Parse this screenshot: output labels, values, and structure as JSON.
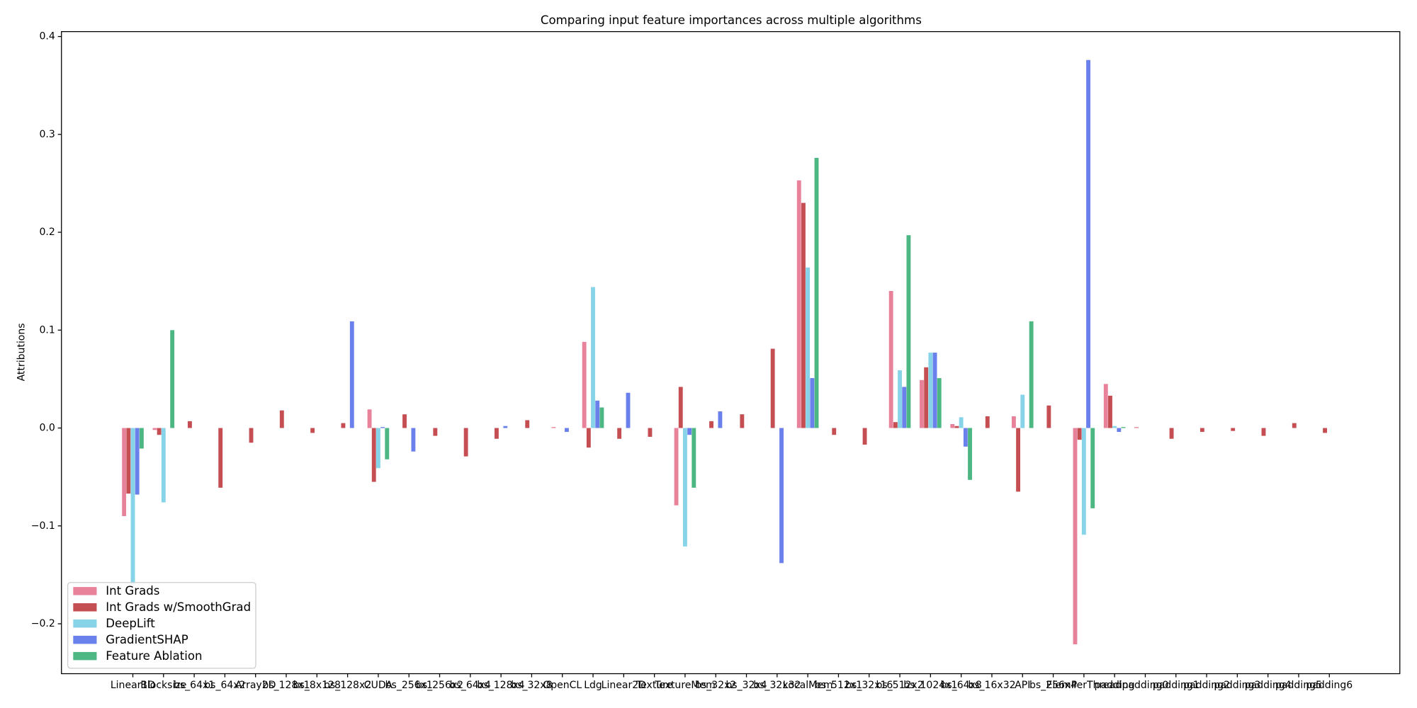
{
  "chart_data": {
    "type": "bar",
    "title": "Comparing input feature importances across multiple algorithms",
    "ylabel": "Attributions",
    "categories": [
      "Linear1D",
      "Blocksize",
      "bs_64x1",
      "bs_64x2",
      "Array2D",
      "bs_128x1",
      "bs_8x128",
      "bs_128x2",
      "CUDA",
      "bs_256x1",
      "bs_256x2",
      "bs_64x4",
      "bs_128x4",
      "bs_32x8",
      "OpenCL",
      "Ldg",
      "Linear2D",
      "Texture",
      "TextureMem",
      "bs_32x2",
      "bs_32x4",
      "bs_32x32",
      "LocalMem",
      "bs_512x1",
      "bs_32x16",
      "bs_512x2",
      "bs_1024x1",
      "bs_64x8",
      "bs_16x32",
      "API",
      "bs_256x4",
      "ElemPerThread",
      "padding",
      "padding0",
      "padding1",
      "padding2",
      "padding3",
      "padding4",
      "padding5",
      "padding6"
    ],
    "series": [
      {
        "name": "Int Grads",
        "color": "#e8829a",
        "values": [
          -0.09,
          -0.002,
          0,
          0,
          0,
          0,
          0,
          0,
          0.019,
          0,
          0,
          0,
          0,
          0,
          0.001,
          0.088,
          0,
          0,
          -0.079,
          0,
          0,
          0,
          0.253,
          0,
          0,
          0.14,
          0.049,
          0.004,
          0,
          0.012,
          0,
          -0.221,
          0.045,
          0.001,
          0,
          0,
          0,
          0,
          0,
          0
        ]
      },
      {
        "name": "Int Grads w/SmoothGrad",
        "color": "#c44e52",
        "values": [
          -0.067,
          -0.007,
          0.007,
          -0.061,
          -0.015,
          0.018,
          -0.005,
          0.005,
          -0.055,
          0.014,
          -0.008,
          -0.029,
          -0.011,
          0.008,
          0,
          -0.02,
          -0.011,
          -0.009,
          0.042,
          0.007,
          0.014,
          0.081,
          0.23,
          -0.007,
          -0.017,
          0.006,
          0.062,
          0.002,
          0.012,
          -0.065,
          0.023,
          -0.012,
          0.033,
          0,
          -0.011,
          -0.004,
          -0.003,
          -0.008,
          0.005,
          -0.005
        ]
      },
      {
        "name": "DeepLift",
        "color": "#87d4e8",
        "values": [
          -0.16,
          -0.076,
          0,
          0,
          0,
          0,
          0,
          0,
          -0.041,
          0,
          0,
          0,
          0,
          0,
          0,
          0.144,
          0,
          0,
          -0.121,
          0,
          0,
          0,
          0.164,
          0,
          0,
          0.059,
          0.077,
          0.011,
          0,
          0.034,
          0,
          -0.109,
          0.002,
          0,
          0,
          0,
          0,
          0,
          0,
          0
        ]
      },
      {
        "name": "GradientSHAP",
        "color": "#6a80ea",
        "values": [
          -0.068,
          0,
          0,
          0,
          0,
          0,
          0,
          0.109,
          0.001,
          -0.024,
          0,
          0,
          0.002,
          0,
          -0.004,
          0.028,
          0.036,
          0,
          -0.007,
          0.017,
          0,
          -0.138,
          0.051,
          0,
          0,
          0.042,
          0.077,
          -0.019,
          0,
          0,
          0,
          0.376,
          -0.004,
          0,
          0,
          0,
          0,
          0,
          0,
          0
        ]
      },
      {
        "name": "Feature Ablation",
        "color": "#4cb782",
        "values": [
          -0.021,
          0.1,
          0,
          0,
          0,
          0,
          0,
          0,
          -0.032,
          0,
          0,
          0,
          0,
          0,
          0,
          0.021,
          0,
          0,
          -0.061,
          0,
          0,
          0,
          0.276,
          0,
          0,
          0.197,
          0.051,
          -0.053,
          0,
          0.109,
          0,
          -0.082,
          0.001,
          0,
          0,
          0,
          0,
          0,
          0,
          0
        ]
      }
    ],
    "ylim": [
      -0.251,
      0.405
    ],
    "yticks": [
      {
        "value": -0.2,
        "label": "−0.2"
      },
      {
        "value": -0.1,
        "label": "−0.1"
      },
      {
        "value": 0,
        "label": "0.0"
      },
      0.1,
      0.2,
      0.3,
      0.4
    ],
    "legend": "lower left"
  }
}
